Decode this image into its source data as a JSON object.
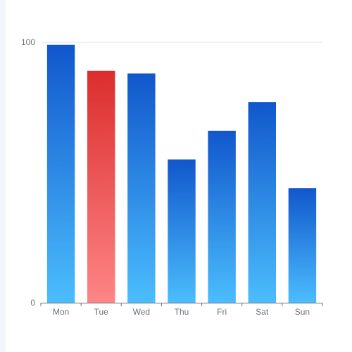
{
  "chart_data": {
    "type": "bar",
    "categories": [
      "Mon",
      "Tue",
      "Wed",
      "Thu",
      "Fri",
      "Sat",
      "Sun"
    ],
    "values": [
      99,
      89,
      88,
      55,
      66,
      77,
      44
    ],
    "ylim": [
      0,
      100
    ],
    "yticks": [
      "0",
      "100"
    ],
    "highlight_index": 1,
    "colors": {
      "bar_top": "#1157cc",
      "bar_bottom": "#4bbdfd",
      "highlight_top": "#dc2d2d",
      "highlight_bottom": "#fe8586",
      "grid": "#e0e6f1",
      "axis": "#6e7079"
    }
  }
}
